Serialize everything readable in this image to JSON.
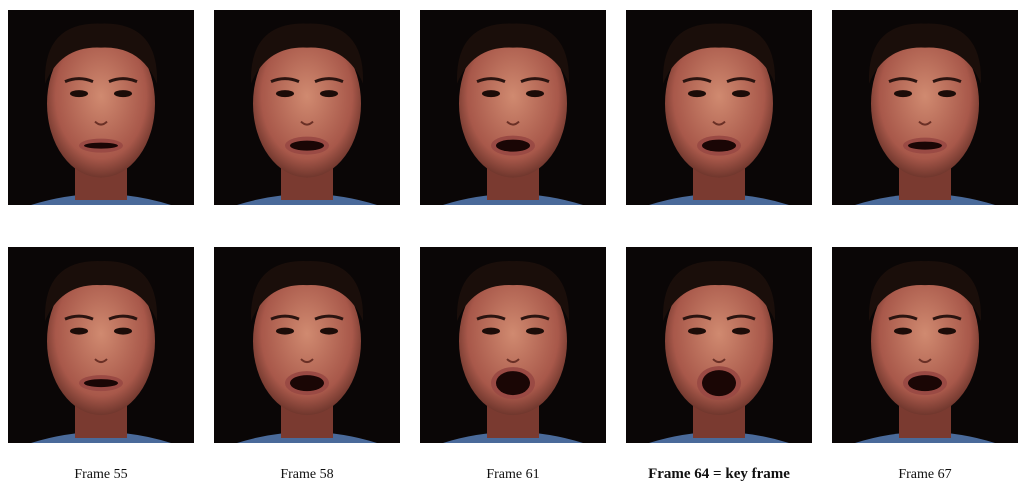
{
  "figure": {
    "labels": [
      "Frame 55",
      "Frame 58",
      "Frame 61",
      "Frame 64 = key frame",
      "Frame 67"
    ]
  }
}
